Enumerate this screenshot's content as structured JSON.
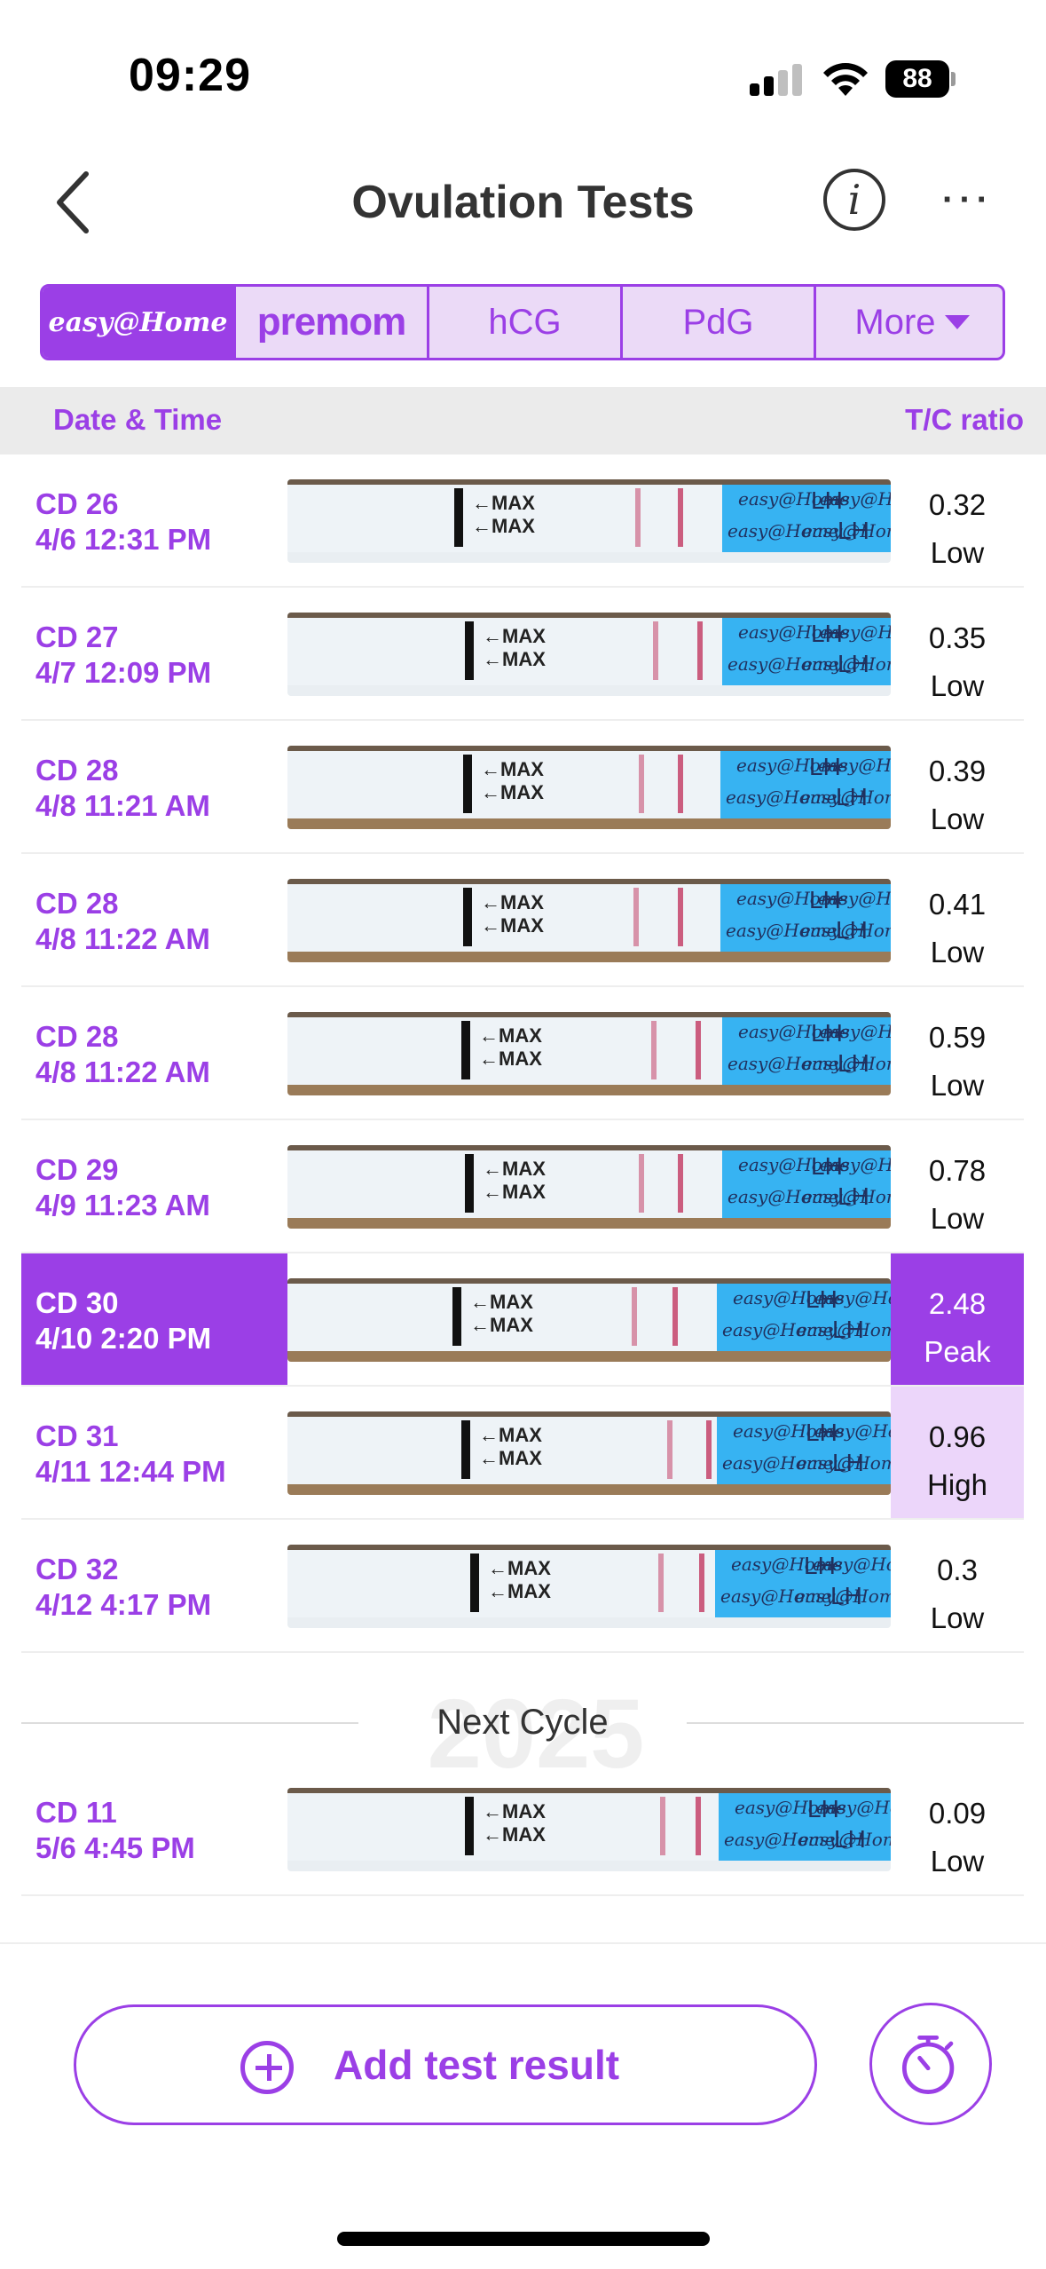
{
  "status_bar": {
    "time": "09:29",
    "battery": "88"
  },
  "header": {
    "title": "Ovulation Tests",
    "info_glyph": "i"
  },
  "brand_tabs": {
    "easy_home": "easy@Home",
    "premom": "premom",
    "hcg": "hCG",
    "pdg": "PdG",
    "more": "More"
  },
  "list_header": {
    "date_time": "Date & Time",
    "tc_ratio": "T/C ratio"
  },
  "strip_text": {
    "max": "←MAX",
    "brand": "easy@Home",
    "lh": "LH"
  },
  "rows": [
    {
      "cd": "CD 26",
      "datetime": "4/6 12:31 PM",
      "ratio": "0.32",
      "level": "Low"
    },
    {
      "cd": "CD 27",
      "datetime": "4/7 12:09 PM",
      "ratio": "0.35",
      "level": "Low"
    },
    {
      "cd": "CD 28",
      "datetime": "4/8 11:21 AM",
      "ratio": "0.39",
      "level": "Low"
    },
    {
      "cd": "CD 28",
      "datetime": "4/8 11:22 AM",
      "ratio": "0.41",
      "level": "Low"
    },
    {
      "cd": "CD 28",
      "datetime": "4/8 11:22 AM",
      "ratio": "0.59",
      "level": "Low"
    },
    {
      "cd": "CD 29",
      "datetime": "4/9 11:23 AM",
      "ratio": "0.78",
      "level": "Low"
    },
    {
      "cd": "CD 30",
      "datetime": "4/10 2:20 PM",
      "ratio": "2.48",
      "level": "Peak"
    },
    {
      "cd": "CD 31",
      "datetime": "4/11 12:44 PM",
      "ratio": "0.96",
      "level": "High"
    },
    {
      "cd": "CD 32",
      "datetime": "4/12 4:17 PM",
      "ratio": "0.3",
      "level": "Low"
    }
  ],
  "cycle_divider": {
    "label": "Next Cycle",
    "watermark": "2025"
  },
  "next_rows": [
    {
      "cd": "CD 11",
      "datetime": "5/6 4:45 PM",
      "ratio": "0.09",
      "level": "Low"
    }
  ],
  "actions": {
    "add_label": "Add test result"
  },
  "colors": {
    "accent": "#9b3fe6",
    "accent_light": "#ecd6fa",
    "strip_label": "#37b3f2",
    "test_line": "#c4426a"
  },
  "icons": {
    "back": "chevron-left-icon",
    "info": "info-icon",
    "more": "ellipsis-icon",
    "add": "plus-circle-icon",
    "timer": "stopwatch-icon"
  }
}
